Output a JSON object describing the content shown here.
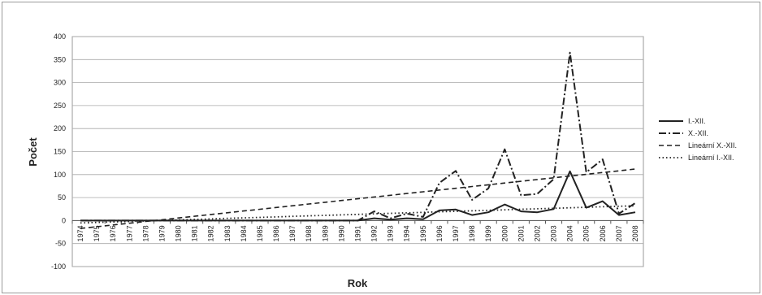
{
  "chart_data": {
    "type": "line",
    "title": "",
    "xlabel": "Rok",
    "ylabel": "Počet",
    "ylim": [
      -100,
      400
    ],
    "yticks": [
      "400",
      "350",
      "300",
      "250",
      "200",
      "150",
      "100",
      "50",
      "0",
      "-50",
      "-100"
    ],
    "categories": [
      "1974",
      "1975",
      "1976",
      "1977",
      "1978",
      "1979",
      "1980",
      "1981",
      "1982",
      "1983",
      "1984",
      "1985",
      "1986",
      "1987",
      "1988",
      "1989",
      "1990",
      "1991",
      "1992",
      "1993",
      "1994",
      "1995",
      "1996",
      "1997",
      "1998",
      "1999",
      "2000",
      "2001",
      "2002",
      "2003",
      "2004",
      "2005",
      "2006",
      "2007",
      "2008"
    ],
    "grid": "horizontal",
    "legend_position": "right",
    "series": [
      {
        "name": "I.-XII.",
        "style": "solid",
        "color": "#222222",
        "values": [
          0,
          0,
          0,
          0,
          0,
          0,
          0,
          0,
          0,
          0,
          0,
          0,
          0,
          0,
          0,
          0,
          0,
          0,
          5,
          2,
          5,
          3,
          22,
          24,
          12,
          18,
          35,
          20,
          18,
          25,
          107,
          28,
          42,
          12,
          18
        ]
      },
      {
        "name": "X.-XII.",
        "style": "dashdot",
        "color": "#222222",
        "values": [
          0,
          0,
          0,
          0,
          0,
          0,
          0,
          0,
          0,
          0,
          0,
          0,
          0,
          0,
          0,
          0,
          0,
          0,
          20,
          5,
          15,
          8,
          82,
          108,
          45,
          70,
          155,
          55,
          58,
          90,
          365,
          105,
          133,
          15,
          38
        ]
      },
      {
        "name": "Lineární X.-XII.",
        "style": "dashed",
        "color": "#222222",
        "values": [
          -17.2,
          -13.4,
          -9.6,
          -5.8,
          -2.0,
          1.8,
          5.6,
          9.4,
          13.2,
          17.0,
          20.8,
          24.6,
          28.4,
          32.2,
          36.0,
          39.8,
          43.6,
          47.4,
          51.2,
          55.0,
          58.8,
          62.6,
          66.4,
          70.2,
          74.0,
          77.8,
          81.6,
          85.4,
          89.2,
          93.0,
          96.8,
          100.6,
          104.4,
          108.2,
          112.0
        ]
      },
      {
        "name": "Lineární I.-XII.",
        "style": "dotted",
        "color": "#222222",
        "values": [
          -5.2,
          -4.1,
          -3.0,
          -1.9,
          -0.8,
          0.3,
          1.4,
          2.5,
          3.6,
          4.7,
          5.8,
          6.9,
          8.0,
          9.1,
          10.2,
          11.3,
          12.4,
          13.5,
          14.6,
          15.7,
          16.8,
          17.9,
          19.0,
          20.1,
          21.2,
          22.3,
          23.4,
          24.5,
          25.6,
          26.7,
          27.8,
          28.9,
          30.0,
          31.1,
          32.2
        ]
      }
    ]
  }
}
